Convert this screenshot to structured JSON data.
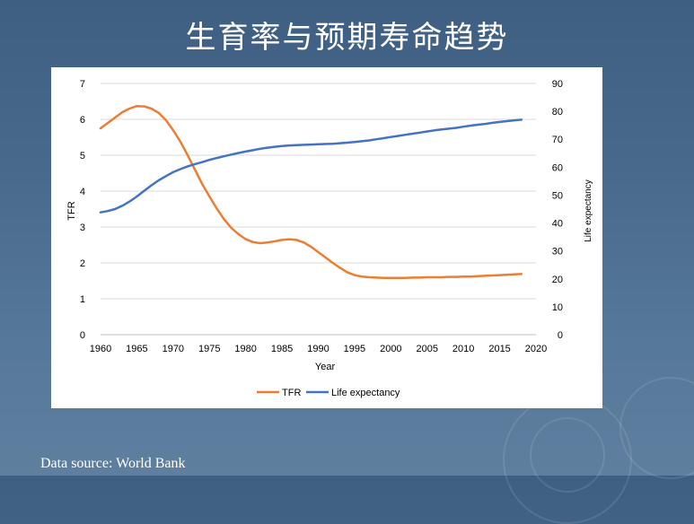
{
  "slide": {
    "title": "生育率与预期寿命趋势",
    "source": "Data source: World Bank"
  },
  "colors": {
    "tfr": "#ED7D31",
    "life_expectancy": "#4472C4",
    "grid": "#D9D9D9",
    "axis_text": "#000000"
  },
  "chart_data": {
    "type": "line",
    "title": "",
    "xlabel": "Year",
    "ylabel": "TFR",
    "y2label": "Life expectancy",
    "xlim": [
      1960,
      2020
    ],
    "ylim": [
      0,
      7
    ],
    "y2lim": [
      0,
      90
    ],
    "grid": true,
    "legend": "bottom",
    "x_ticks": [
      "1960",
      "1965",
      "1970",
      "1975",
      "1980",
      "1985",
      "1990",
      "1995",
      "2000",
      "2005",
      "2010",
      "2015",
      "2020"
    ],
    "y_ticks": [
      "0",
      "1",
      "2",
      "3",
      "4",
      "5",
      "6",
      "7"
    ],
    "y2_ticks": [
      "0",
      "10",
      "20",
      "30",
      "40",
      "50",
      "60",
      "70",
      "80",
      "90"
    ],
    "x": [
      1960,
      1961,
      1962,
      1963,
      1964,
      1965,
      1966,
      1967,
      1968,
      1969,
      1970,
      1971,
      1972,
      1973,
      1974,
      1975,
      1976,
      1977,
      1978,
      1979,
      1980,
      1981,
      1982,
      1983,
      1984,
      1985,
      1986,
      1987,
      1988,
      1989,
      1990,
      1991,
      1992,
      1993,
      1994,
      1995,
      1996,
      1997,
      1998,
      1999,
      2000,
      2001,
      2002,
      2003,
      2004,
      2005,
      2006,
      2007,
      2008,
      2009,
      2010,
      2011,
      2012,
      2013,
      2014,
      2015,
      2016,
      2017,
      2018
    ],
    "series": [
      {
        "name": "TFR",
        "axis": "left",
        "values": [
          5.75,
          5.9,
          6.05,
          6.2,
          6.3,
          6.37,
          6.36,
          6.3,
          6.18,
          5.98,
          5.7,
          5.38,
          5.0,
          4.6,
          4.2,
          3.85,
          3.52,
          3.22,
          2.98,
          2.8,
          2.66,
          2.58,
          2.55,
          2.57,
          2.6,
          2.64,
          2.66,
          2.64,
          2.57,
          2.45,
          2.3,
          2.15,
          2.0,
          1.86,
          1.74,
          1.66,
          1.62,
          1.6,
          1.59,
          1.58,
          1.58,
          1.58,
          1.58,
          1.59,
          1.59,
          1.6,
          1.6,
          1.6,
          1.61,
          1.61,
          1.62,
          1.62,
          1.63,
          1.64,
          1.65,
          1.66,
          1.67,
          1.68,
          1.69
        ]
      },
      {
        "name": "Life expectancy",
        "axis": "right",
        "values": [
          43.8,
          44.3,
          45.0,
          46.2,
          47.7,
          49.5,
          51.5,
          53.5,
          55.3,
          56.8,
          58.2,
          59.3,
          60.3,
          61.1,
          61.8,
          62.6,
          63.3,
          63.9,
          64.5,
          65.1,
          65.6,
          66.1,
          66.6,
          67.0,
          67.3,
          67.6,
          67.8,
          67.9,
          68.0,
          68.1,
          68.2,
          68.3,
          68.4,
          68.6,
          68.8,
          69.0,
          69.3,
          69.6,
          70.0,
          70.4,
          70.8,
          71.2,
          71.6,
          72.0,
          72.4,
          72.8,
          73.2,
          73.5,
          73.8,
          74.1,
          74.5,
          74.9,
          75.2,
          75.5,
          75.9,
          76.2,
          76.5,
          76.8,
          77.0
        ]
      }
    ]
  }
}
